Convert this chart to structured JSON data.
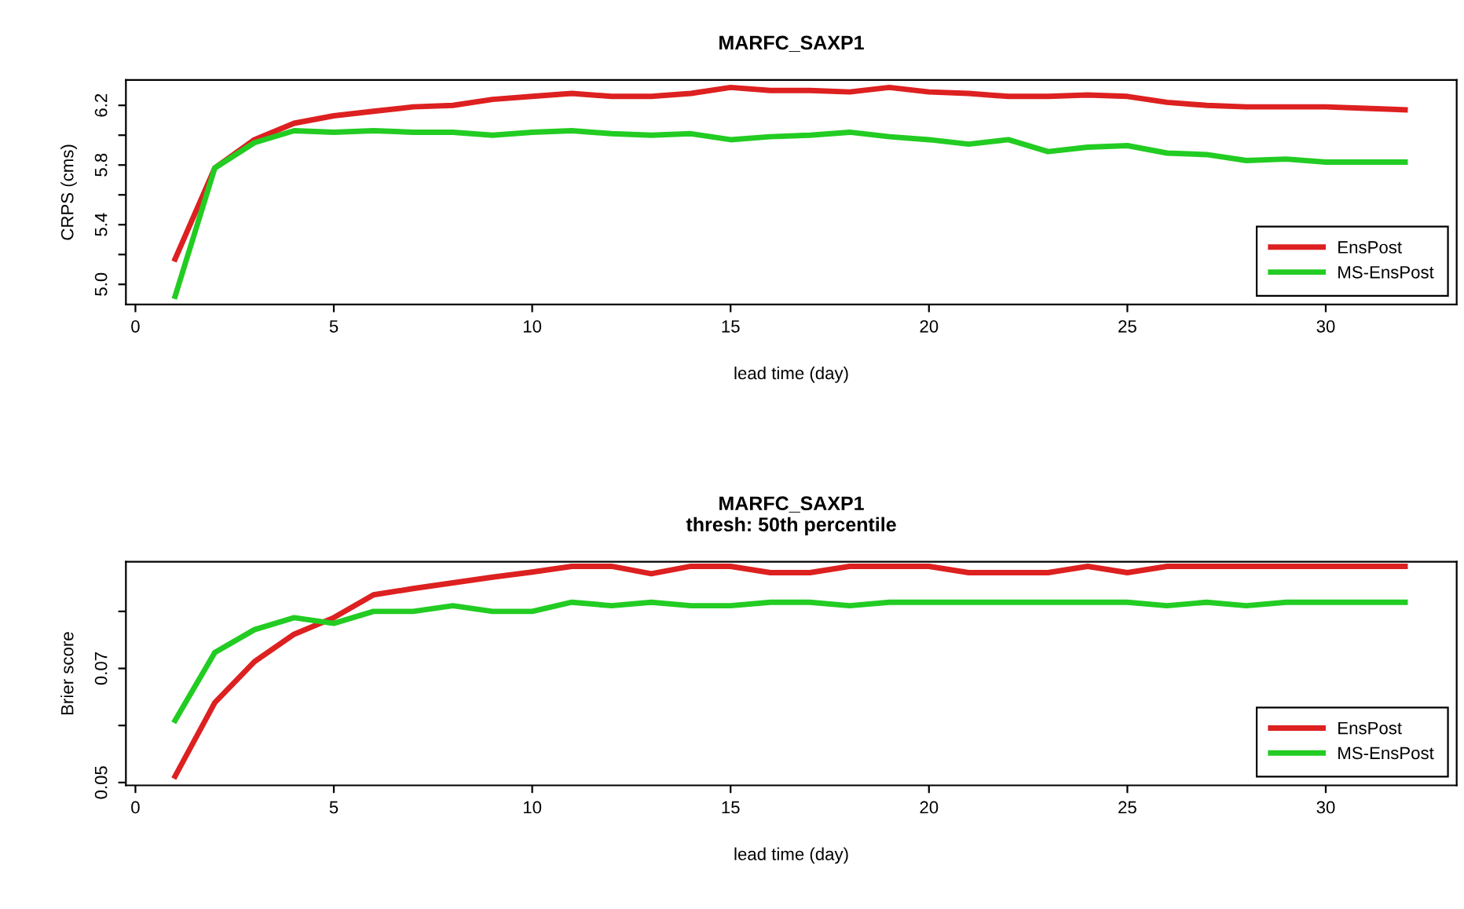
{
  "chart_data": [
    {
      "type": "line",
      "title": "MARFC_SAXP1",
      "xlabel": "lead time (day)",
      "ylabel": "CRPS (cms)",
      "x": [
        1,
        2,
        3,
        4,
        5,
        6,
        7,
        8,
        9,
        10,
        11,
        12,
        13,
        14,
        15,
        16,
        17,
        18,
        19,
        20,
        21,
        22,
        23,
        24,
        25,
        26,
        27,
        28,
        29,
        30,
        31,
        32
      ],
      "series": [
        {
          "name": "EnsPost",
          "color": "#dd2020",
          "values": [
            5.17,
            5.78,
            5.97,
            6.08,
            6.13,
            6.16,
            6.19,
            6.2,
            6.24,
            6.26,
            6.28,
            6.26,
            6.26,
            6.28,
            6.32,
            6.3,
            6.3,
            6.29,
            6.32,
            6.29,
            6.28,
            6.26,
            6.26,
            6.27,
            6.26,
            6.22,
            6.2,
            6.19,
            6.19,
            6.19,
            6.18,
            6.17
          ]
        },
        {
          "name": "MS-EnsPost",
          "color": "#22cc22",
          "values": [
            4.92,
            5.78,
            5.95,
            6.03,
            6.02,
            6.03,
            6.02,
            6.02,
            6.0,
            6.02,
            6.03,
            6.01,
            6.0,
            6.01,
            5.97,
            5.99,
            6.0,
            6.02,
            5.99,
            5.97,
            5.94,
            5.97,
            5.89,
            5.92,
            5.93,
            5.88,
            5.87,
            5.83,
            5.84,
            5.82,
            5.82,
            5.82
          ]
        }
      ],
      "xlim": [
        -0.24,
        33.3
      ],
      "xticks": [
        0,
        5,
        10,
        15,
        20,
        25,
        30
      ],
      "ylim": [
        4.865,
        6.37
      ],
      "yticks": [
        {
          "value": 5.0,
          "label": "5.0"
        },
        {
          "value": 5.2,
          "label": null
        },
        {
          "value": 5.4,
          "label": "5.4"
        },
        {
          "value": 5.6,
          "label": null
        },
        {
          "value": 5.8,
          "label": "5.8"
        },
        {
          "value": 6.0,
          "label": null
        },
        {
          "value": 6.2,
          "label": "6.2"
        }
      ],
      "legend": "bottom right",
      "grid": false,
      "marker": "none",
      "line_style": "solid"
    },
    {
      "type": "line",
      "title": "MARFC_SAXP1\nthresh: 50th percentile",
      "xlabel": "lead time (day)",
      "ylabel": "Brier score",
      "x": [
        1,
        2,
        3,
        4,
        5,
        6,
        7,
        8,
        9,
        10,
        11,
        12,
        13,
        14,
        15,
        16,
        17,
        18,
        19,
        20,
        21,
        22,
        23,
        24,
        25,
        26,
        27,
        28,
        29,
        30,
        31,
        32
      ],
      "series": [
        {
          "name": "EnsPost",
          "color": "#dd2020",
          "values": [
            0.0511,
            0.064,
            0.0712,
            0.076,
            0.0789,
            0.0829,
            0.084,
            0.085,
            0.086,
            0.0869,
            0.0879,
            0.0879,
            0.0866,
            0.0879,
            0.0879,
            0.0868,
            0.0868,
            0.0879,
            0.0879,
            0.0879,
            0.0868,
            0.0868,
            0.0868,
            0.0879,
            0.0868,
            0.0879,
            0.0879,
            0.0879,
            0.0879,
            0.0879,
            0.0879,
            0.0879
          ]
        },
        {
          "name": "MS-EnsPost",
          "color": "#22cc22",
          "values": [
            0.0609,
            0.0728,
            0.0768,
            0.0789,
            0.0779,
            0.08,
            0.08,
            0.081,
            0.08,
            0.08,
            0.0816,
            0.081,
            0.0816,
            0.081,
            0.081,
            0.0816,
            0.0816,
            0.081,
            0.0816,
            0.0816,
            0.0816,
            0.0816,
            0.0816,
            0.0816,
            0.0816,
            0.081,
            0.0816,
            0.081,
            0.0816,
            0.0816,
            0.0816,
            0.0816
          ]
        }
      ],
      "xlim": [
        -0.24,
        33.3
      ],
      "xticks": [
        0,
        5,
        10,
        15,
        20,
        25,
        30
      ],
      "ylim": [
        0.0495,
        0.0887
      ],
      "yticks": [
        0.05,
        {
          "value": 0.06,
          "label": null
        },
        0.07,
        {
          "value": 0.08,
          "label": null
        }
      ],
      "legend": "bottom right",
      "grid": false,
      "marker": "none",
      "line_style": "solid"
    }
  ]
}
